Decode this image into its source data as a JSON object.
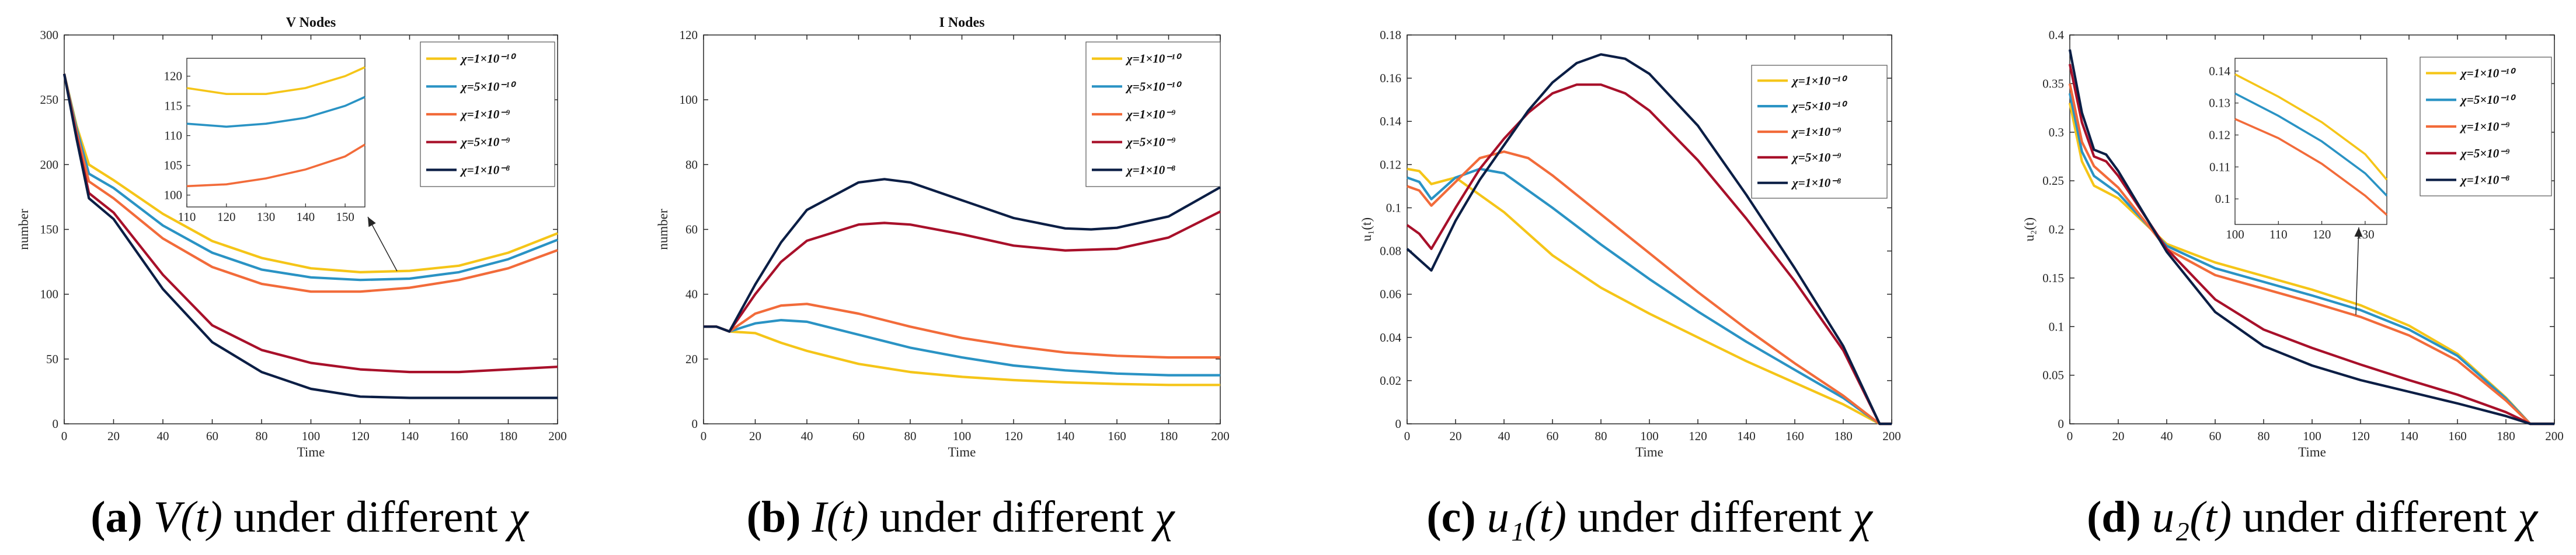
{
  "legend_labels": [
    "χ=1×10⁻¹⁰",
    "χ=5×10⁻¹⁰",
    "χ=1×10⁻⁹",
    "χ=5×10⁻⁹",
    "χ=1×10⁻⁸"
  ],
  "series_colors": [
    "#F5C518",
    "#2A93C4",
    "#F26B3A",
    "#A8102A",
    "#0B1E45"
  ],
  "chart_data": [
    {
      "type": "line",
      "title": "V Nodes",
      "xlabel": "Time",
      "ylabel": "number",
      "xlim": [
        0,
        200
      ],
      "ylim": [
        0,
        300
      ],
      "xticks": [
        0,
        20,
        40,
        60,
        80,
        100,
        120,
        140,
        160,
        180,
        200
      ],
      "yticks": [
        0,
        50,
        100,
        150,
        200,
        250,
        300
      ],
      "caption": {
        "label": "(a)",
        "math": "V(t)",
        "text": "under different",
        "symbol": "χ"
      },
      "series": [
        {
          "name": "χ=1×10⁻¹⁰",
          "x": [
            0,
            5,
            10,
            20,
            40,
            60,
            80,
            100,
            120,
            140,
            160,
            180,
            200
          ],
          "y": [
            270,
            230,
            200,
            188,
            162,
            141,
            128,
            120,
            117,
            118,
            122,
            132,
            147
          ]
        },
        {
          "name": "χ=5×10⁻¹⁰",
          "x": [
            0,
            5,
            10,
            20,
            40,
            60,
            80,
            100,
            120,
            140,
            160,
            180,
            200
          ],
          "y": [
            270,
            228,
            193,
            182,
            153,
            132,
            119,
            113,
            111,
            112,
            117,
            127,
            142
          ]
        },
        {
          "name": "χ=1×10⁻⁹",
          "x": [
            0,
            5,
            10,
            20,
            40,
            60,
            80,
            100,
            120,
            140,
            160,
            180,
            200
          ],
          "y": [
            270,
            225,
            187,
            174,
            143,
            121,
            108,
            102,
            102,
            105,
            111,
            120,
            134
          ]
        },
        {
          "name": "χ=5×10⁻⁹",
          "x": [
            0,
            5,
            10,
            20,
            40,
            60,
            80,
            100,
            120,
            140,
            160,
            180,
            200
          ],
          "y": [
            270,
            222,
            178,
            163,
            115,
            76,
            57,
            47,
            42,
            40,
            40,
            42,
            44
          ]
        },
        {
          "name": "χ=1×10⁻⁸",
          "x": [
            0,
            5,
            10,
            20,
            40,
            60,
            80,
            100,
            120,
            140,
            160,
            180,
            200
          ],
          "y": [
            270,
            220,
            174,
            158,
            104,
            63,
            40,
            27,
            21,
            20,
            20,
            20,
            20
          ]
        }
      ],
      "inset": {
        "xlim": [
          110,
          155
        ],
        "ylim": [
          98,
          123
        ],
        "xticks": [
          110,
          120,
          130,
          140,
          150
        ],
        "yticks": [
          100,
          105,
          110,
          115,
          120
        ],
        "series": [
          {
            "name": "χ=1×10⁻¹⁰",
            "x": [
              110,
              120,
              130,
              140,
              150,
              155
            ],
            "y": [
              118,
              117,
              117,
              118,
              120,
              121.5
            ]
          },
          {
            "name": "χ=5×10⁻¹⁰",
            "x": [
              110,
              120,
              130,
              140,
              150,
              155
            ],
            "y": [
              112,
              111.5,
              112,
              113,
              115,
              116.5
            ]
          },
          {
            "name": "χ=1×10⁻⁹",
            "x": [
              110,
              120,
              130,
              140,
              150,
              155
            ],
            "y": [
              101.5,
              101.8,
              102.8,
              104.3,
              106.5,
              108.5
            ]
          }
        ]
      }
    },
    {
      "type": "line",
      "title": "I Nodes",
      "xlabel": "Time",
      "ylabel": "number",
      "xlim": [
        0,
        200
      ],
      "ylim": [
        0,
        120
      ],
      "xticks": [
        0,
        20,
        40,
        60,
        80,
        100,
        120,
        140,
        160,
        180,
        200
      ],
      "yticks": [
        0,
        20,
        40,
        60,
        80,
        100,
        120
      ],
      "caption": {
        "label": "(b)",
        "math": "I(t)",
        "text": "under different",
        "symbol": "χ"
      },
      "series": [
        {
          "name": "χ=1×10⁻¹⁰",
          "x": [
            0,
            5,
            10,
            20,
            30,
            40,
            60,
            80,
            100,
            120,
            140,
            160,
            180,
            200
          ],
          "y": [
            30,
            30,
            28.5,
            28,
            25,
            22.5,
            18.5,
            16,
            14.5,
            13.5,
            12.8,
            12.3,
            12,
            12
          ]
        },
        {
          "name": "χ=5×10⁻¹⁰",
          "x": [
            0,
            5,
            10,
            20,
            30,
            40,
            60,
            80,
            100,
            120,
            140,
            160,
            180,
            200
          ],
          "y": [
            30,
            30,
            28.5,
            31,
            32,
            31.5,
            27.5,
            23.5,
            20.5,
            18,
            16.5,
            15.5,
            15,
            15
          ]
        },
        {
          "name": "χ=1×10⁻⁹",
          "x": [
            0,
            5,
            10,
            20,
            30,
            40,
            60,
            80,
            100,
            120,
            140,
            160,
            180,
            200
          ],
          "y": [
            30,
            30,
            28.5,
            34,
            36.5,
            37,
            34,
            30,
            26.5,
            24,
            22,
            21,
            20.5,
            20.5
          ]
        },
        {
          "name": "χ=5×10⁻⁹",
          "x": [
            0,
            5,
            10,
            20,
            30,
            40,
            60,
            70,
            80,
            100,
            120,
            140,
            160,
            180,
            200
          ],
          "y": [
            30,
            30,
            28.5,
            40,
            50,
            56.5,
            61.5,
            62,
            61.5,
            58.5,
            55,
            53.5,
            54,
            57.5,
            65.5
          ]
        },
        {
          "name": "χ=1×10⁻⁸",
          "x": [
            0,
            5,
            10,
            20,
            30,
            40,
            60,
            70,
            80,
            100,
            120,
            140,
            150,
            160,
            180,
            200
          ],
          "y": [
            30,
            30,
            28.5,
            43,
            56,
            66,
            74.5,
            75.5,
            74.5,
            69,
            63.5,
            60.3,
            60,
            60.5,
            64,
            73
          ]
        }
      ]
    },
    {
      "type": "line",
      "title": "",
      "xlabel": "Time",
      "ylabel": "u₁(t)",
      "xlim": [
        0,
        200
      ],
      "ylim": [
        0,
        0.18
      ],
      "xticks": [
        0,
        20,
        40,
        60,
        80,
        100,
        120,
        140,
        160,
        180,
        200
      ],
      "yticks": [
        0,
        0.02,
        0.04,
        0.06,
        0.08,
        0.1,
        0.12,
        0.14,
        0.16,
        0.18
      ],
      "caption": {
        "label": "(c)",
        "math": "u₁(t)",
        "text": "under different",
        "symbol": "χ"
      },
      "series": [
        {
          "name": "χ=1×10⁻¹⁰",
          "x": [
            0,
            5,
            10,
            20,
            40,
            60,
            80,
            100,
            120,
            140,
            160,
            180,
            195,
            200
          ],
          "y": [
            0.118,
            0.117,
            0.111,
            0.114,
            0.098,
            0.078,
            0.063,
            0.051,
            0.04,
            0.029,
            0.019,
            0.009,
            0.0,
            0.0
          ]
        },
        {
          "name": "χ=5×10⁻¹⁰",
          "x": [
            0,
            5,
            10,
            20,
            30,
            40,
            60,
            80,
            100,
            120,
            140,
            160,
            180,
            195,
            200
          ],
          "y": [
            0.114,
            0.112,
            0.104,
            0.114,
            0.118,
            0.116,
            0.1,
            0.083,
            0.067,
            0.052,
            0.038,
            0.025,
            0.012,
            0.0,
            0.0
          ]
        },
        {
          "name": "χ=1×10⁻⁹",
          "x": [
            0,
            5,
            10,
            20,
            30,
            40,
            50,
            60,
            80,
            100,
            120,
            140,
            160,
            180,
            195,
            200
          ],
          "y": [
            0.11,
            0.108,
            0.101,
            0.112,
            0.123,
            0.126,
            0.123,
            0.115,
            0.097,
            0.079,
            0.061,
            0.044,
            0.028,
            0.013,
            0.0,
            0.0
          ]
        },
        {
          "name": "χ=5×10⁻⁹",
          "x": [
            0,
            5,
            10,
            20,
            30,
            40,
            50,
            60,
            70,
            80,
            90,
            100,
            120,
            140,
            160,
            180,
            195,
            200
          ],
          "y": [
            0.092,
            0.088,
            0.081,
            0.1,
            0.118,
            0.132,
            0.144,
            0.153,
            0.157,
            0.157,
            0.153,
            0.145,
            0.122,
            0.095,
            0.066,
            0.034,
            0.0,
            0.0
          ]
        },
        {
          "name": "χ=1×10⁻⁸",
          "x": [
            0,
            5,
            10,
            20,
            30,
            40,
            50,
            60,
            70,
            80,
            90,
            100,
            120,
            140,
            160,
            180,
            195,
            200
          ],
          "y": [
            0.081,
            0.076,
            0.071,
            0.094,
            0.113,
            0.129,
            0.145,
            0.158,
            0.167,
            0.171,
            0.169,
            0.162,
            0.138,
            0.106,
            0.072,
            0.036,
            0.0,
            0.0
          ]
        }
      ]
    },
    {
      "type": "line",
      "title": "",
      "xlabel": "Time",
      "ylabel": "u₂(t)",
      "xlim": [
        0,
        200
      ],
      "ylim": [
        0,
        0.4
      ],
      "xticks": [
        0,
        20,
        40,
        60,
        80,
        100,
        120,
        140,
        160,
        180,
        200
      ],
      "yticks": [
        0,
        0.05,
        0.1,
        0.15,
        0.2,
        0.25,
        0.3,
        0.35,
        0.4
      ],
      "caption": {
        "label": "(d)",
        "math": "u₂(t)",
        "text": "under different",
        "symbol": "χ"
      },
      "series": [
        {
          "name": "χ=1×10⁻¹⁰",
          "x": [
            0,
            5,
            10,
            20,
            40,
            60,
            80,
            100,
            120,
            140,
            160,
            180,
            190,
            200
          ],
          "y": [
            0.33,
            0.27,
            0.245,
            0.232,
            0.185,
            0.166,
            0.152,
            0.138,
            0.122,
            0.101,
            0.072,
            0.027,
            0.0,
            0.0
          ]
        },
        {
          "name": "χ=5×10⁻¹⁰",
          "x": [
            0,
            5,
            10,
            20,
            40,
            60,
            80,
            100,
            120,
            140,
            160,
            180,
            190,
            200
          ],
          "y": [
            0.34,
            0.28,
            0.255,
            0.237,
            0.183,
            0.16,
            0.146,
            0.132,
            0.117,
            0.097,
            0.07,
            0.026,
            0.0,
            0.0
          ]
        },
        {
          "name": "χ=1×10⁻⁹",
          "x": [
            0,
            5,
            10,
            20,
            40,
            60,
            80,
            100,
            120,
            140,
            160,
            180,
            190,
            200
          ],
          "y": [
            0.35,
            0.29,
            0.265,
            0.243,
            0.18,
            0.153,
            0.139,
            0.125,
            0.11,
            0.091,
            0.065,
            0.024,
            0.0,
            0.0
          ]
        },
        {
          "name": "χ=5×10⁻⁹",
          "x": [
            0,
            5,
            10,
            15,
            20,
            40,
            60,
            80,
            100,
            120,
            140,
            160,
            180,
            190,
            200
          ],
          "y": [
            0.37,
            0.31,
            0.275,
            0.27,
            0.255,
            0.18,
            0.128,
            0.097,
            0.078,
            0.061,
            0.045,
            0.03,
            0.012,
            0.0,
            0.0
          ]
        },
        {
          "name": "χ=1×10⁻⁸",
          "x": [
            0,
            5,
            10,
            15,
            20,
            40,
            60,
            80,
            100,
            120,
            140,
            160,
            180,
            190,
            200
          ],
          "y": [
            0.385,
            0.32,
            0.282,
            0.277,
            0.26,
            0.177,
            0.115,
            0.08,
            0.06,
            0.045,
            0.033,
            0.021,
            0.008,
            0.0,
            0.0
          ]
        }
      ],
      "inset": {
        "xlim": [
          100,
          135
        ],
        "ylim": [
          0.092,
          0.144
        ],
        "xticks": [
          100,
          110,
          120,
          130
        ],
        "yticks": [
          0.1,
          0.11,
          0.12,
          0.13,
          0.14
        ],
        "series": [
          {
            "name": "χ=1×10⁻¹⁰",
            "x": [
              100,
              110,
              120,
              130,
              135
            ],
            "y": [
              0.139,
              0.132,
              0.124,
              0.114,
              0.106
            ]
          },
          {
            "name": "χ=5×10⁻¹⁰",
            "x": [
              100,
              110,
              120,
              130,
              135
            ],
            "y": [
              0.133,
              0.126,
              0.118,
              0.108,
              0.101
            ]
          },
          {
            "name": "χ=1×10⁻⁹",
            "x": [
              100,
              110,
              120,
              130,
              135
            ],
            "y": [
              0.125,
              0.119,
              0.111,
              0.101,
              0.095
            ]
          }
        ]
      }
    }
  ]
}
